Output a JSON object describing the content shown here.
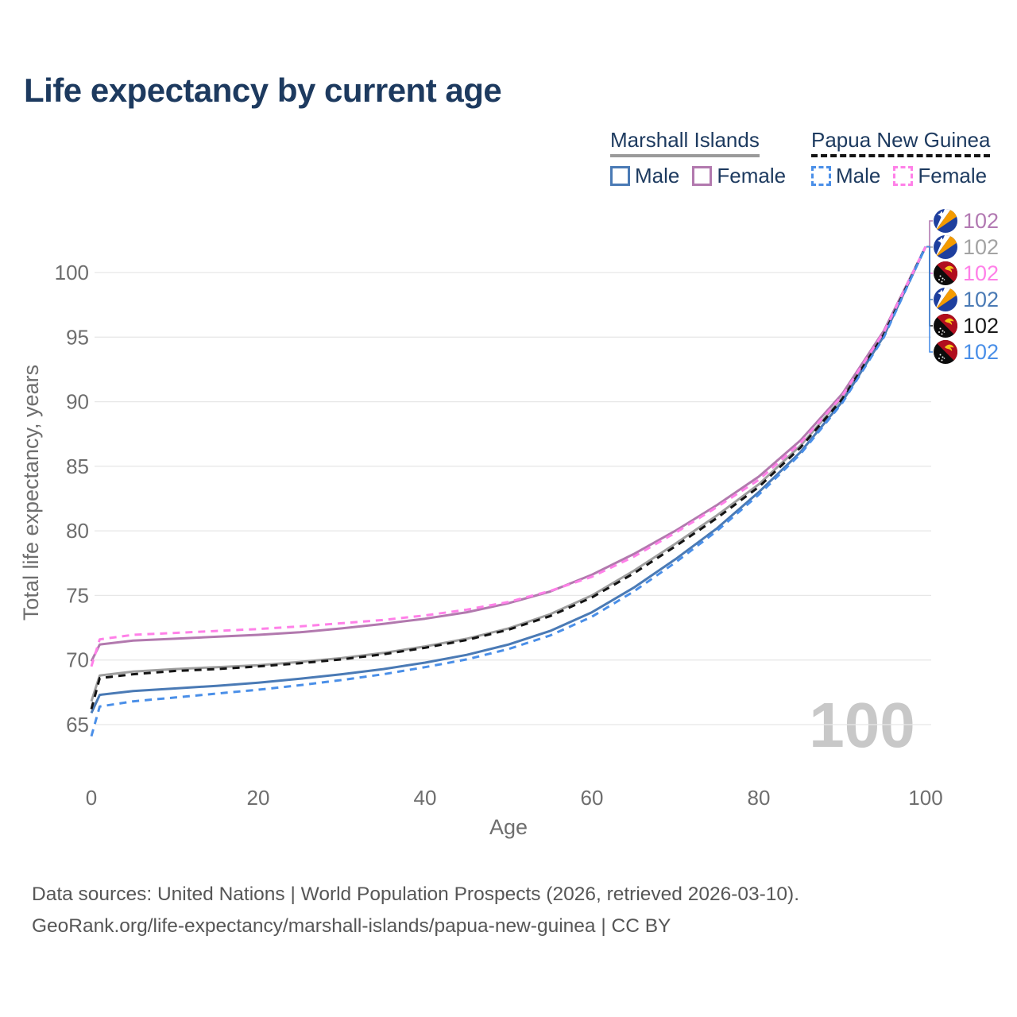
{
  "page": {
    "title": "Life expectancy by current age"
  },
  "legend": {
    "groups": [
      {
        "label": "Marshall Islands",
        "underline_style": "solid",
        "underline_color": "#9a9a9a",
        "items": [
          {
            "label": "Male",
            "color": "#4a7ab5",
            "dash": false
          },
          {
            "label": "Female",
            "color": "#b279ae",
            "dash": false
          }
        ]
      },
      {
        "label": "Papua New Guinea",
        "underline_style": "dashed",
        "underline_color": "#141414",
        "items": [
          {
            "label": "Male",
            "color": "#4a8fe8",
            "dash": true
          },
          {
            "label": "Female",
            "color": "#ff80e8",
            "dash": true
          }
        ]
      }
    ]
  },
  "chart_data": {
    "type": "line",
    "title": "Life expectancy by current age",
    "xlabel": "Age",
    "ylabel": "Total life expectancy, years",
    "xticks": [
      0,
      20,
      40,
      60,
      80,
      100
    ],
    "yticks": [
      65,
      70,
      75,
      80,
      85,
      90,
      95,
      100
    ],
    "xlim": [
      0,
      100
    ],
    "ylim": [
      63.5,
      103
    ],
    "grid": "horizontal",
    "watermark": "100",
    "x": [
      0,
      1,
      5,
      10,
      15,
      20,
      25,
      30,
      35,
      40,
      45,
      50,
      55,
      60,
      65,
      70,
      75,
      80,
      85,
      90,
      95,
      100
    ],
    "series": [
      {
        "id": "mi-total",
        "name": "Marshall Islands Total",
        "color": "#9e9e9e",
        "dash": false,
        "values": [
          66.8,
          68.8,
          69.1,
          69.3,
          69.45,
          69.6,
          69.85,
          70.15,
          70.55,
          71.05,
          71.65,
          72.45,
          73.55,
          75.0,
          76.9,
          79.0,
          81.2,
          83.6,
          86.6,
          90.3,
          95.3,
          102
        ]
      },
      {
        "id": "mi-female",
        "name": "Marshall Islands Female",
        "color": "#b279ae",
        "dash": false,
        "values": [
          69.9,
          71.2,
          71.5,
          71.65,
          71.8,
          71.95,
          72.15,
          72.45,
          72.8,
          73.2,
          73.7,
          74.4,
          75.3,
          76.6,
          78.2,
          80.0,
          82.0,
          84.2,
          87.0,
          90.6,
          95.5,
          102
        ]
      },
      {
        "id": "mi-male",
        "name": "Marshall Islands Male",
        "color": "#4a7ab5",
        "dash": false,
        "values": [
          65.9,
          67.3,
          67.6,
          67.8,
          68.0,
          68.25,
          68.55,
          68.9,
          69.3,
          69.8,
          70.4,
          71.2,
          72.25,
          73.7,
          75.6,
          77.8,
          80.2,
          83.0,
          86.1,
          90.0,
          95.1,
          102
        ]
      },
      {
        "id": "png-total",
        "name": "Papua New Guinea Total",
        "color": "#141414",
        "dash": true,
        "values": [
          66.2,
          68.6,
          68.9,
          69.15,
          69.3,
          69.5,
          69.75,
          70.05,
          70.45,
          70.95,
          71.55,
          72.35,
          73.4,
          74.85,
          76.7,
          78.8,
          81.0,
          83.4,
          86.45,
          90.2,
          95.2,
          102
        ]
      },
      {
        "id": "png-female",
        "name": "Papua New Guinea Female",
        "color": "#ff80e8",
        "dash": true,
        "values": [
          69.5,
          71.6,
          71.95,
          72.1,
          72.25,
          72.4,
          72.6,
          72.85,
          73.1,
          73.45,
          73.9,
          74.5,
          75.35,
          76.45,
          78.0,
          79.85,
          81.85,
          83.95,
          86.8,
          90.45,
          95.4,
          102
        ]
      },
      {
        "id": "png-male",
        "name": "Papua New Guinea Male",
        "color": "#4a8fe8",
        "dash": true,
        "values": [
          64.1,
          66.4,
          66.8,
          67.1,
          67.4,
          67.7,
          68.05,
          68.45,
          68.9,
          69.45,
          70.05,
          70.85,
          71.9,
          73.35,
          75.3,
          77.55,
          80.0,
          82.8,
          85.95,
          89.9,
          95.0,
          102
        ]
      }
    ],
    "end_labels": [
      {
        "flag": "mh",
        "value": "102",
        "color": "#b279b2",
        "series": "mi-female"
      },
      {
        "flag": "mh",
        "value": "102",
        "color": "#a3a3a3",
        "series": "mi-total"
      },
      {
        "flag": "pg",
        "value": "102",
        "color": "#ff80e8",
        "series": "png-female"
      },
      {
        "flag": "mh",
        "value": "102",
        "color": "#4a7ab5",
        "series": "mi-male"
      },
      {
        "flag": "pg",
        "value": "102",
        "color": "#1a1a1a",
        "series": "png-total"
      },
      {
        "flag": "pg",
        "value": "102",
        "color": "#4a8fe8",
        "series": "png-male"
      }
    ]
  },
  "footer": {
    "line1": "Data sources: United Nations | World Population Prospects (2026, retrieved 2026-03-10).",
    "line2": "GeoRank.org/life-expectancy/marshall-islands/papua-new-guinea | CC BY"
  }
}
